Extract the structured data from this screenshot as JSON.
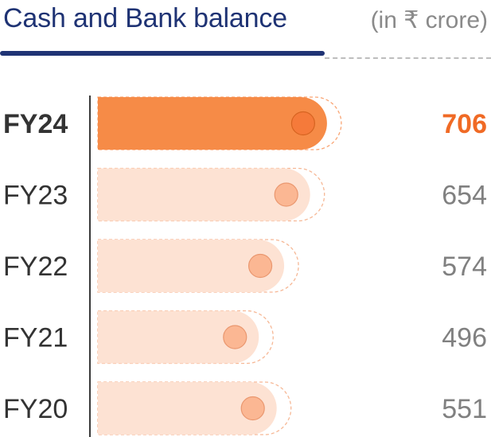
{
  "header": {
    "title": "Cash and Bank balance",
    "unit": "(in ₹ crore)"
  },
  "chart_data": {
    "type": "bar",
    "orientation": "horizontal",
    "categories": [
      "FY24",
      "FY23",
      "FY22",
      "FY21",
      "FY20"
    ],
    "values": [
      706,
      654,
      574,
      496,
      551
    ],
    "value_labels": [
      "706",
      "654",
      "574",
      "496",
      "551"
    ],
    "highlight": "FY24",
    "colors": {
      "highlight_bar": "#f68b47",
      "highlight_label": "#f06a25",
      "bar": "#fde2d3",
      "dot_highlight": "#f57a3a",
      "dot": "#fbb590",
      "axis": "#3a3a3a",
      "category_text": "#333333",
      "value_text": "#808080"
    }
  }
}
